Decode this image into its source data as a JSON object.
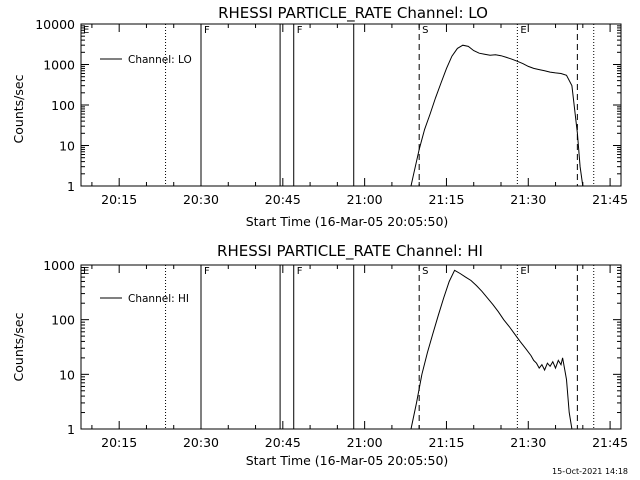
{
  "footer_timestamp": "15-Oct-2021 14:18",
  "chart_data": [
    {
      "type": "line",
      "title": "RHESSI PARTICLE_RATE Channel: LO",
      "ylabel": "Counts/sec",
      "xlabel": "Start Time (16-Mar-05 20:05:50)",
      "y_scale": "log",
      "ylim": [
        1,
        10000
      ],
      "xlim_minutes": [
        8,
        47
      ],
      "x_tick_values": [
        15,
        30,
        45,
        60,
        75,
        90,
        105
      ],
      "x_tick_labels": [
        "20:15",
        "20:30",
        "20:45",
        "21:00",
        "21:15",
        "21:30",
        "21:45"
      ],
      "y_tick_values": [
        1,
        10,
        100,
        1000,
        10000
      ],
      "y_tick_labels": [
        "1",
        "10",
        "100",
        "1000",
        "10000"
      ],
      "legend": {
        "label": "Channel: LO",
        "placement": "top-left"
      },
      "markers": [
        {
          "letter": "E",
          "x_minute": 8.0,
          "style": "none"
        },
        {
          "letter": "F",
          "x_minute": 30.0,
          "style": "solid"
        },
        {
          "letter": "F",
          "x_minute": 47.0,
          "style": "solid"
        },
        {
          "letter": "S",
          "x_minute": 70.0,
          "style": "dashed"
        },
        {
          "letter": "E",
          "x_minute": 88.0,
          "style": "dotted"
        }
      ],
      "vlines": [
        {
          "x_minute": 23.5,
          "style": "dotted"
        },
        {
          "x_minute": 30.0,
          "style": "solid"
        },
        {
          "x_minute": 44.5,
          "style": "solid"
        },
        {
          "x_minute": 47.0,
          "style": "solid"
        },
        {
          "x_minute": 58.0,
          "style": "solid"
        },
        {
          "x_minute": 70.0,
          "style": "dashed"
        },
        {
          "x_minute": 88.0,
          "style": "dotted"
        },
        {
          "x_minute": 99.0,
          "style": "dashed"
        },
        {
          "x_minute": 102.0,
          "style": "dotted"
        }
      ],
      "series": [
        {
          "name": "Channel: LO",
          "x": [
            68.5,
            69.0,
            70.0,
            71.0,
            72.0,
            73.0,
            74.0,
            75.0,
            76.0,
            77.0,
            78.0,
            79.0,
            80.0,
            81.0,
            82.0,
            83.0,
            84.0,
            85.0,
            86.0,
            87.0,
            88.0,
            89.0,
            90.0,
            91.0,
            92.0,
            93.0,
            94.0,
            95.0,
            96.0,
            97.0,
            98.0,
            99.0,
            99.5,
            100.0
          ],
          "y": [
            1,
            2,
            8,
            25,
            60,
            150,
            350,
            800,
            1600,
            2500,
            3000,
            2800,
            2200,
            1900,
            1800,
            1700,
            1750,
            1650,
            1500,
            1350,
            1200,
            1050,
            900,
            800,
            750,
            700,
            650,
            620,
            600,
            540,
            300,
            20,
            3,
            1
          ]
        }
      ]
    },
    {
      "type": "line",
      "title": "RHESSI PARTICLE_RATE Channel: HI",
      "ylabel": "Counts/sec",
      "xlabel": "Start Time (16-Mar-05 20:05:50)",
      "y_scale": "log",
      "ylim": [
        1,
        1000
      ],
      "xlim_minutes": [
        8,
        47
      ],
      "x_tick_values": [
        15,
        30,
        45,
        60,
        75,
        90,
        105
      ],
      "x_tick_labels": [
        "20:15",
        "20:30",
        "20:45",
        "21:00",
        "21:15",
        "21:30",
        "21:45"
      ],
      "y_tick_values": [
        1,
        10,
        100,
        1000
      ],
      "y_tick_labels": [
        "1",
        "10",
        "100",
        "1000"
      ],
      "legend": {
        "label": "Channel: HI",
        "placement": "top-left"
      },
      "markers": [
        {
          "letter": "E",
          "x_minute": 8.0,
          "style": "none"
        },
        {
          "letter": "F",
          "x_minute": 30.0,
          "style": "solid"
        },
        {
          "letter": "F",
          "x_minute": 47.0,
          "style": "solid"
        },
        {
          "letter": "S",
          "x_minute": 70.0,
          "style": "dashed"
        },
        {
          "letter": "E",
          "x_minute": 88.0,
          "style": "dotted"
        }
      ],
      "vlines": [
        {
          "x_minute": 23.5,
          "style": "dotted"
        },
        {
          "x_minute": 30.0,
          "style": "solid"
        },
        {
          "x_minute": 44.5,
          "style": "solid"
        },
        {
          "x_minute": 47.0,
          "style": "solid"
        },
        {
          "x_minute": 58.0,
          "style": "solid"
        },
        {
          "x_minute": 70.0,
          "style": "dashed"
        },
        {
          "x_minute": 88.0,
          "style": "dotted"
        },
        {
          "x_minute": 99.0,
          "style": "dashed"
        },
        {
          "x_minute": 102.0,
          "style": "dotted"
        }
      ],
      "series": [
        {
          "name": "Channel: HI",
          "x": [
            68.5,
            69.5,
            70.5,
            71.5,
            72.5,
            73.5,
            74.5,
            75.5,
            76.5,
            77.5,
            78.5,
            79.5,
            80.5,
            81.5,
            82.5,
            83.5,
            84.5,
            85.5,
            86.5,
            87.5,
            88.5,
            89.5,
            90.5,
            91.0,
            91.5,
            92.0,
            92.5,
            93.0,
            93.5,
            94.0,
            94.5,
            95.0,
            95.5,
            96.0,
            96.3,
            96.7,
            97.0,
            97.5,
            98.0
          ],
          "y": [
            1,
            3,
            10,
            25,
            55,
            120,
            250,
            500,
            800,
            700,
            600,
            520,
            420,
            330,
            250,
            190,
            140,
            100,
            75,
            55,
            40,
            30,
            22,
            18,
            16,
            13,
            15,
            12,
            16,
            14,
            17,
            13,
            18,
            15,
            20,
            12,
            8,
            2,
            1
          ]
        }
      ]
    }
  ]
}
